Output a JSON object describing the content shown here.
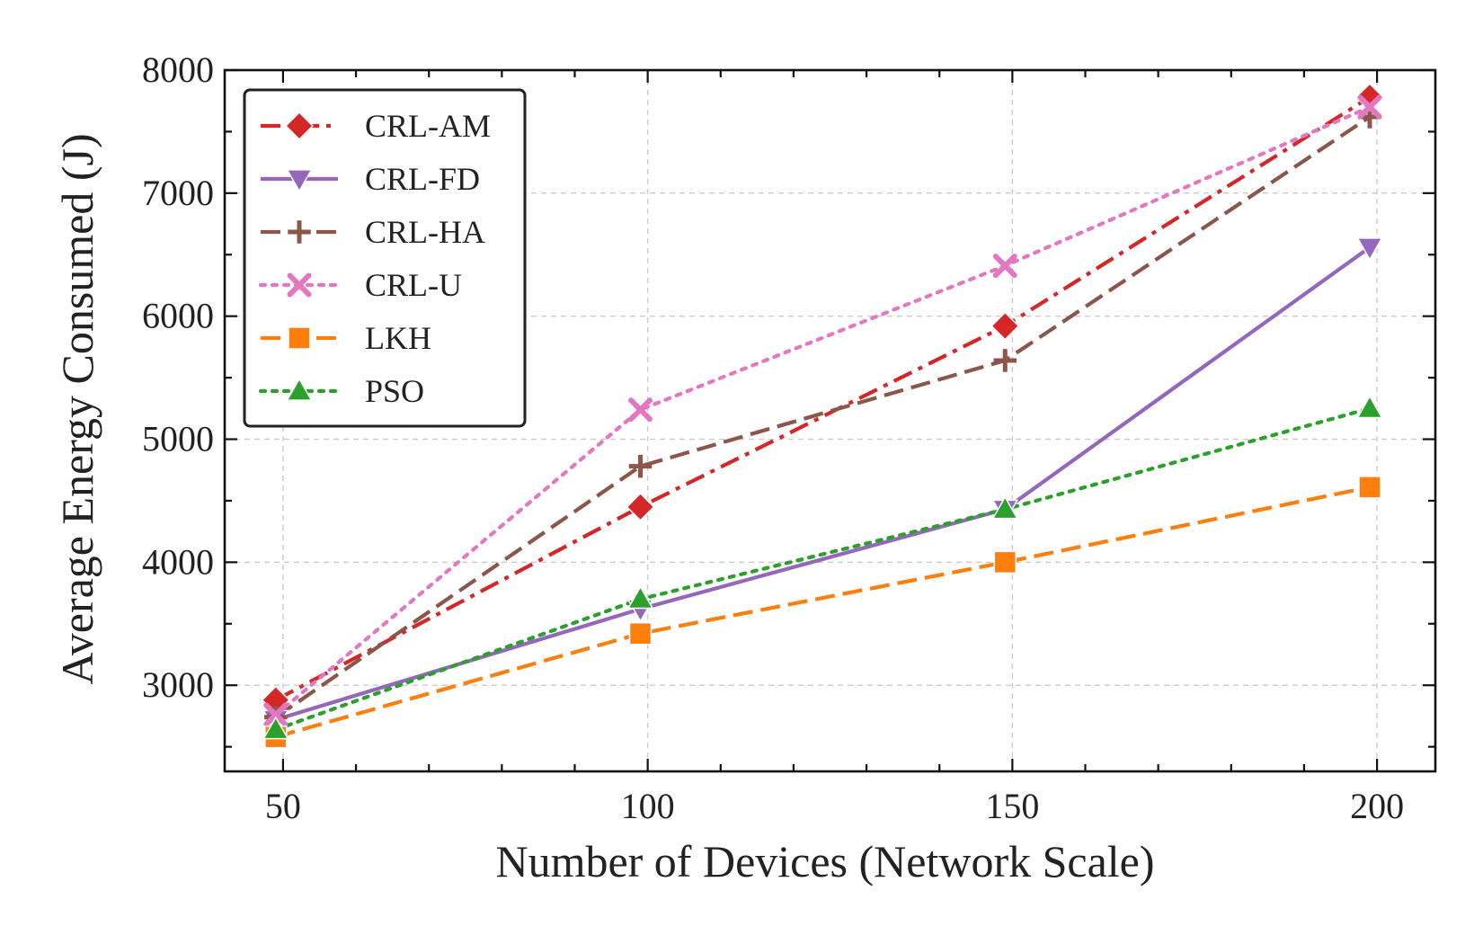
{
  "chart_data": {
    "type": "line",
    "xlabel": "Number of Devices (Network Scale)",
    "ylabel": "Average Energy Consumed (J)",
    "xlim": [
      42,
      208
    ],
    "ylim": [
      2300,
      8000
    ],
    "x_ticks": [
      50,
      100,
      150,
      200
    ],
    "x_tick_labels": [
      "50",
      "100",
      "150",
      "200"
    ],
    "x_minor_ticks": [
      60,
      70,
      80,
      90,
      110,
      120,
      130,
      140,
      160,
      170,
      180,
      190
    ],
    "y_ticks": [
      3000,
      4000,
      5000,
      6000,
      7000,
      8000
    ],
    "y_tick_labels": [
      "3000",
      "4000",
      "5000",
      "6000",
      "7000",
      "8000"
    ],
    "grid": true,
    "legend_position": "top-left",
    "series": [
      {
        "name": "CRL-AM",
        "color": "#d62728",
        "line": "dashdot",
        "marker": "diamond",
        "x": [
          49,
          99,
          149,
          199
        ],
        "y": [
          2880,
          4450,
          5920,
          7780
        ]
      },
      {
        "name": "CRL-FD",
        "color": "#9467bd",
        "line": "solid",
        "marker": "triangle-down",
        "x": [
          49,
          99,
          149,
          199
        ],
        "y": [
          2720,
          3620,
          4430,
          6560
        ]
      },
      {
        "name": "CRL-HA",
        "color": "#8c564b",
        "line": "dashed",
        "marker": "plus",
        "x": [
          49,
          99,
          149,
          199
        ],
        "y": [
          2740,
          4780,
          5640,
          7620
        ]
      },
      {
        "name": "CRL-U",
        "color": "#e377c2",
        "line": "dotted",
        "marker": "x",
        "x": [
          49,
          99,
          149,
          199
        ],
        "y": [
          2760,
          5240,
          6410,
          7700
        ]
      },
      {
        "name": "LKH",
        "color": "#ff7f0e",
        "line": "dashed",
        "marker": "square",
        "x": [
          49,
          99,
          149,
          199
        ],
        "y": [
          2580,
          3420,
          4000,
          4610
        ]
      },
      {
        "name": "PSO",
        "color": "#2ca02c",
        "line": "dotted",
        "marker": "triangle-up",
        "x": [
          49,
          99,
          149,
          199
        ],
        "y": [
          2640,
          3700,
          4430,
          5250
        ]
      }
    ]
  }
}
